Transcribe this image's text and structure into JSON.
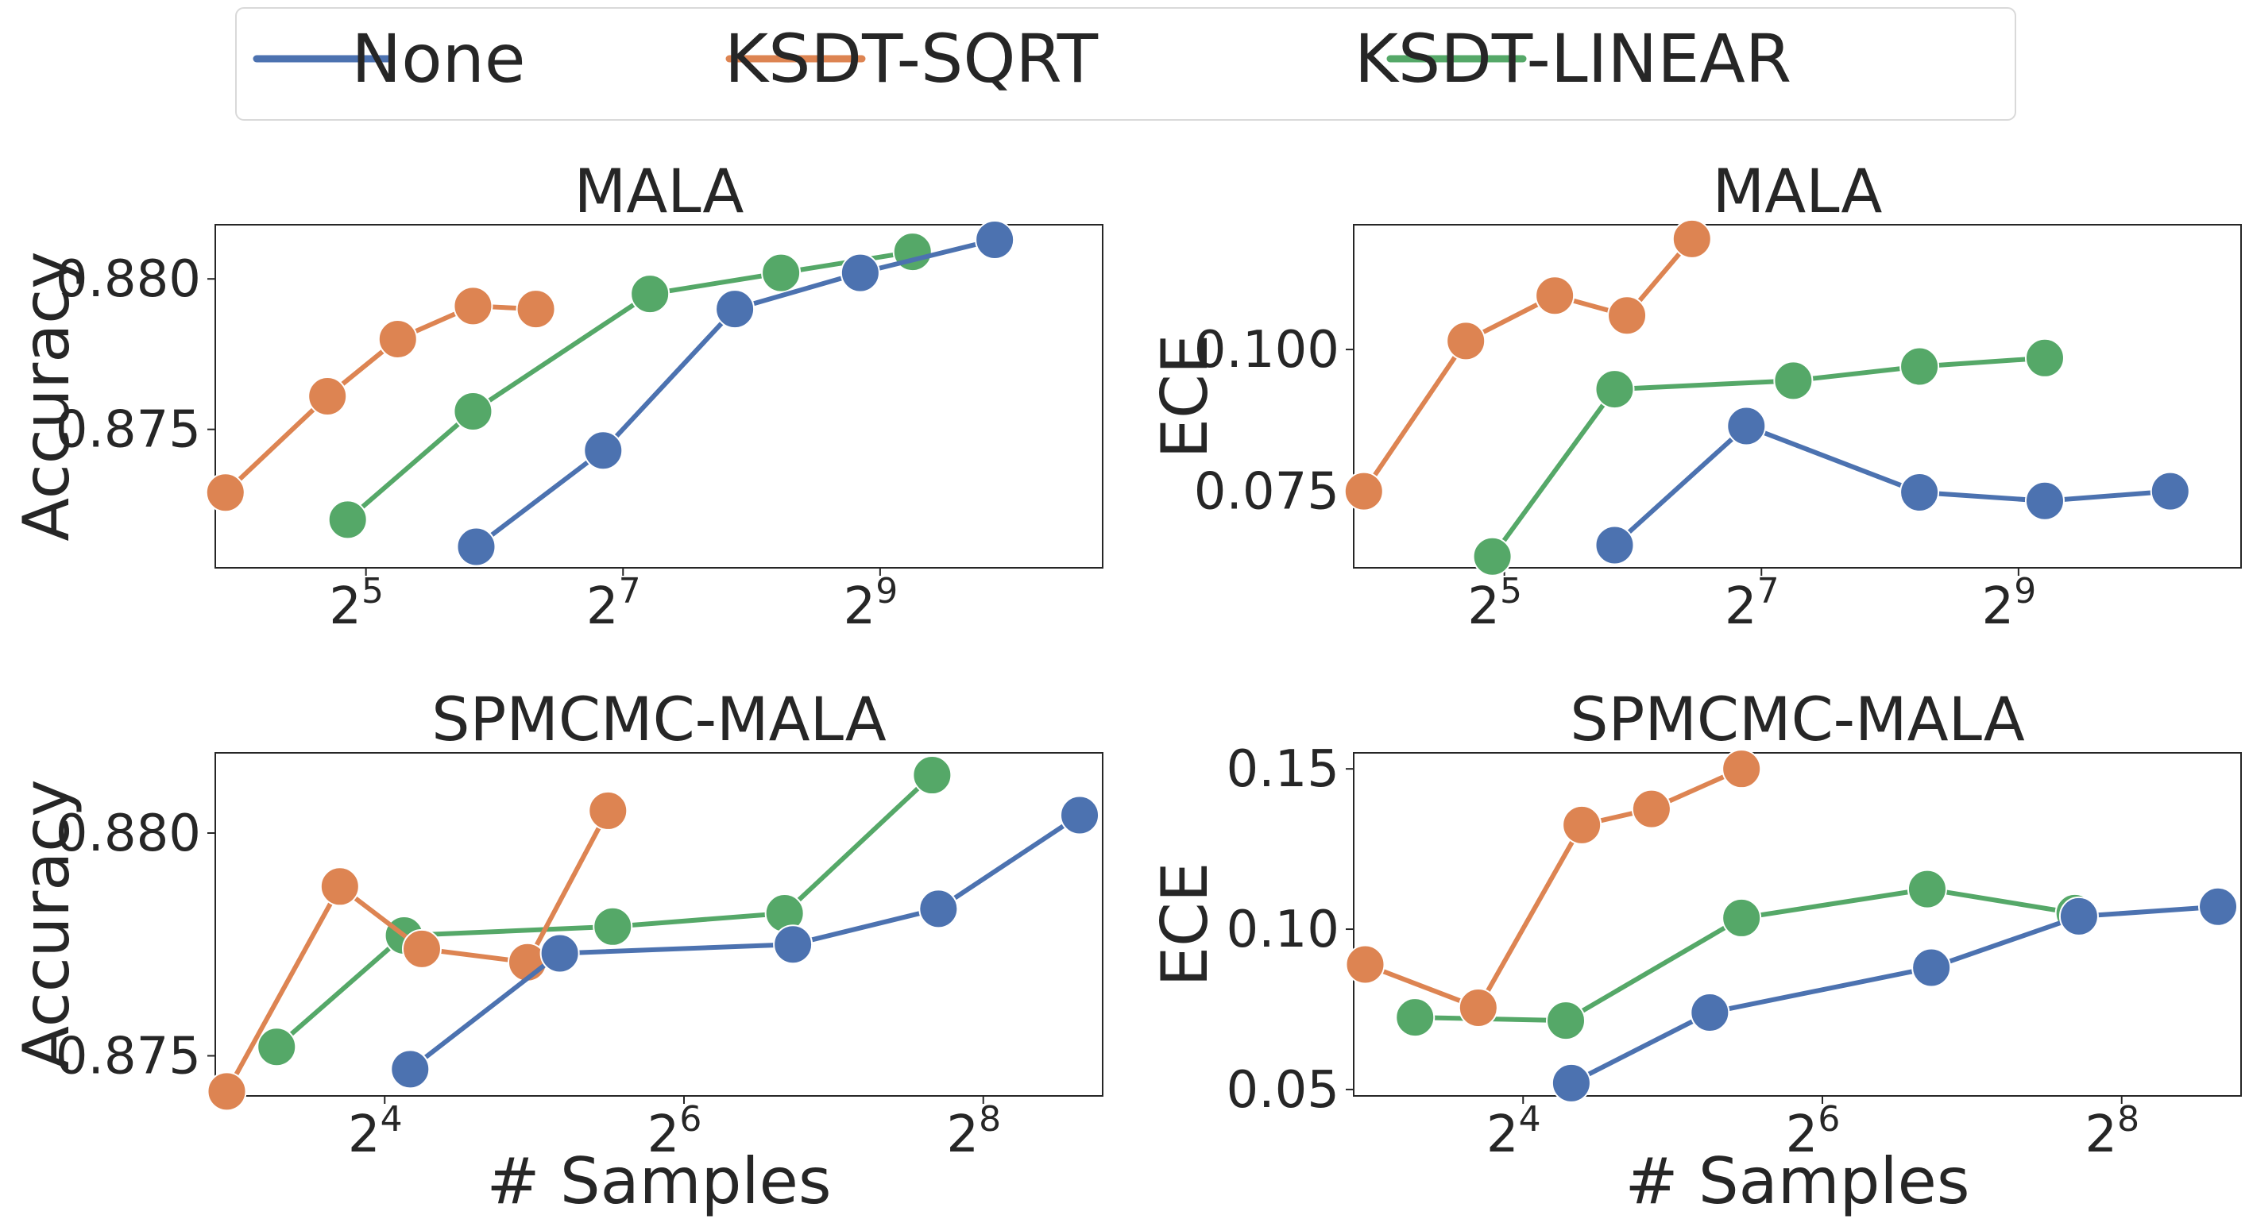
{
  "legend": {
    "entries": [
      {
        "name": "None",
        "color": "#4c72b0"
      },
      {
        "name": "KSDT-SQRT",
        "color": "#dd8452"
      },
      {
        "name": "KSDT-LINEAR",
        "color": "#55a868"
      }
    ],
    "placement": "top-center"
  },
  "chart_data": [
    {
      "type": "line",
      "title": "MALA",
      "xlabel": "",
      "ylabel": "Accuracy",
      "xscale": "log2",
      "xlim": [
        14.2,
        1700
      ],
      "ylim": [
        0.8704,
        0.8818
      ],
      "xticks": [
        {
          "value": 32,
          "base": "2",
          "exp": "5"
        },
        {
          "value": 128,
          "base": "2",
          "exp": "7"
        },
        {
          "value": 512,
          "base": "2",
          "exp": "9"
        }
      ],
      "yticks": [
        {
          "value": 0.875,
          "label": "0.875"
        },
        {
          "value": 0.88,
          "label": "0.880"
        }
      ],
      "series": [
        {
          "name": "None",
          "color": "#4c72b0",
          "points": [
            [
              58,
              0.8711
            ],
            [
              115,
              0.8743
            ],
            [
              234,
              0.879
            ],
            [
              460,
              0.8802
            ],
            [
              950,
              0.8813
            ]
          ]
        },
        {
          "name": "KSDT-SQRT",
          "color": "#dd8452",
          "points": [
            [
              15,
              0.8729
            ],
            [
              26,
              0.8761
            ],
            [
              38,
              0.878
            ],
            [
              57,
              0.8791
            ],
            [
              80,
              0.879
            ]
          ]
        },
        {
          "name": "KSDT-LINEAR",
          "color": "#55a868",
          "points": [
            [
              29,
              0.872
            ],
            [
              57,
              0.8756
            ],
            [
              148,
              0.8795
            ],
            [
              300,
              0.8802
            ],
            [
              610,
              0.8809
            ]
          ]
        }
      ]
    },
    {
      "type": "line",
      "title": "MALA",
      "xlabel": "",
      "ylabel": "ECE",
      "xscale": "log2",
      "xlim": [
        14.2,
        1700
      ],
      "ylim": [
        0.0615,
        0.122
      ],
      "xticks": [
        {
          "value": 32,
          "base": "2",
          "exp": "5"
        },
        {
          "value": 128,
          "base": "2",
          "exp": "7"
        },
        {
          "value": 512,
          "base": "2",
          "exp": "9"
        }
      ],
      "yticks": [
        {
          "value": 0.075,
          "label": "0.075"
        },
        {
          "value": 0.1,
          "label": "0.100"
        }
      ],
      "series": [
        {
          "name": "None",
          "color": "#4c72b0",
          "points": [
            [
              58,
              0.0655
            ],
            [
              118,
              0.0865
            ],
            [
              300,
              0.0748
            ],
            [
              590,
              0.0733
            ],
            [
              1160,
              0.075
            ]
          ]
        },
        {
          "name": "KSDT-SQRT",
          "color": "#dd8452",
          "points": [
            [
              15,
              0.075
            ],
            [
              26,
              0.1015
            ],
            [
              42,
              0.1095
            ],
            [
              62,
              0.106
            ],
            [
              88,
              0.1195
            ]
          ]
        },
        {
          "name": "KSDT-LINEAR",
          "color": "#55a868",
          "points": [
            [
              30,
              0.0635
            ],
            [
              58,
              0.093
            ],
            [
              152,
              0.0945
            ],
            [
              300,
              0.097
            ],
            [
              590,
              0.0985
            ]
          ]
        }
      ]
    },
    {
      "type": "line",
      "title": "SPMCMC-MALA",
      "xlabel": "# Samples",
      "ylabel": "Accuracy",
      "xscale": "log2",
      "xlim": [
        7.3,
        445
      ],
      "ylim": [
        0.8741,
        0.8818
      ],
      "xticks": [
        {
          "value": 16,
          "base": "2",
          "exp": "4"
        },
        {
          "value": 64,
          "base": "2",
          "exp": "6"
        },
        {
          "value": 256,
          "base": "2",
          "exp": "8"
        }
      ],
      "yticks": [
        {
          "value": 0.875,
          "label": "0.875"
        },
        {
          "value": 0.88,
          "label": "0.880"
        }
      ],
      "series": [
        {
          "name": "None",
          "color": "#4c72b0",
          "points": [
            [
              18,
              0.8747
            ],
            [
              36,
              0.8773
            ],
            [
              106,
              0.8775
            ],
            [
              208,
              0.8783
            ],
            [
              400,
              0.8804
            ]
          ]
        },
        {
          "name": "KSDT-SQRT",
          "color": "#dd8452",
          "points": [
            [
              7.7,
              0.8742
            ],
            [
              13,
              0.8788
            ],
            [
              19,
              0.8774
            ],
            [
              31,
              0.8771
            ],
            [
              45,
              0.8805
            ]
          ]
        },
        {
          "name": "KSDT-LINEAR",
          "color": "#55a868",
          "points": [
            [
              9.7,
              0.8752
            ],
            [
              17.5,
              0.8777
            ],
            [
              46,
              0.8779
            ],
            [
              102,
              0.8782
            ],
            [
              202,
              0.8813
            ]
          ]
        }
      ]
    },
    {
      "type": "line",
      "title": "SPMCMC-MALA",
      "xlabel": "# Samples",
      "ylabel": "ECE",
      "xscale": "log2",
      "xlim": [
        7.3,
        445
      ],
      "ylim": [
        0.048,
        0.155
      ],
      "xticks": [
        {
          "value": 16,
          "base": "2",
          "exp": "4"
        },
        {
          "value": 64,
          "base": "2",
          "exp": "6"
        },
        {
          "value": 256,
          "base": "2",
          "exp": "8"
        }
      ],
      "yticks": [
        {
          "value": 0.05,
          "label": "0.05"
        },
        {
          "value": 0.1,
          "label": "0.10"
        },
        {
          "value": 0.15,
          "label": "0.15"
        }
      ],
      "series": [
        {
          "name": "None",
          "color": "#4c72b0",
          "points": [
            [
              20,
              0.052
            ],
            [
              38,
              0.074
            ],
            [
              106,
              0.088
            ],
            [
              210,
              0.104
            ],
            [
              400,
              0.107
            ]
          ]
        },
        {
          "name": "KSDT-SQRT",
          "color": "#dd8452",
          "points": [
            [
              7.7,
              0.089
            ],
            [
              13,
              0.0755
            ],
            [
              21,
              0.1325
            ],
            [
              29,
              0.1375
            ],
            [
              44,
              0.15
            ]
          ]
        },
        {
          "name": "KSDT-LINEAR",
          "color": "#55a868",
          "points": [
            [
              9.7,
              0.0725
            ],
            [
              19.5,
              0.0715
            ],
            [
              44,
              0.1035
            ],
            [
              104,
              0.1125
            ],
            [
              206,
              0.105
            ]
          ]
        }
      ]
    }
  ]
}
